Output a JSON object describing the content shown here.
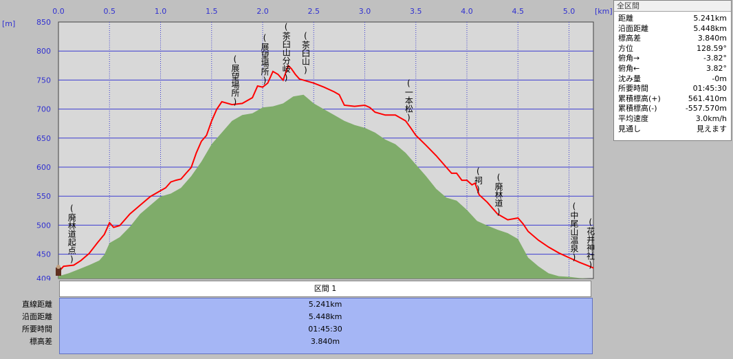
{
  "chart_data": {
    "type": "area",
    "x_unit": "[km]",
    "y_unit": "[m]",
    "xlim": [
      0.0,
      5.241
    ],
    "ylim": [
      409,
      850
    ],
    "x_ticks": [
      "0.0",
      "0.5",
      "1.0",
      "1.5",
      "2.0",
      "2.5",
      "3.0",
      "3.5",
      "4.0",
      "4.5",
      "5.0"
    ],
    "y_ticks": [
      "850",
      "800",
      "750",
      "700",
      "650",
      "600",
      "550",
      "500",
      "450"
    ],
    "y_min_label": "409",
    "colors": {
      "route": "#ff0000",
      "terrain": "#7fac6a",
      "plot_bg": "#d8d8d8",
      "grid": "#3a3ad0",
      "tick_text": "#3030d0"
    },
    "route": {
      "x": [
        0.0,
        0.05,
        0.15,
        0.22,
        0.3,
        0.38,
        0.45,
        0.5,
        0.54,
        0.6,
        0.7,
        0.8,
        0.9,
        1.0,
        1.05,
        1.1,
        1.15,
        1.2,
        1.25,
        1.3,
        1.35,
        1.4,
        1.45,
        1.5,
        1.55,
        1.6,
        1.7,
        1.8,
        1.9,
        1.95,
        2.0,
        2.05,
        2.1,
        2.15,
        2.2,
        2.25,
        2.28,
        2.32,
        2.36,
        2.4,
        2.5,
        2.6,
        2.7,
        2.75,
        2.8,
        2.9,
        3.0,
        3.05,
        3.1,
        3.2,
        3.3,
        3.4,
        3.45,
        3.5,
        3.6,
        3.7,
        3.8,
        3.85,
        3.9,
        3.95,
        4.0,
        4.05,
        4.08,
        4.12,
        4.2,
        4.3,
        4.4,
        4.5,
        4.55,
        4.6,
        4.7,
        4.8,
        4.9,
        5.0,
        5.1,
        5.2,
        5.241
      ],
      "y": [
        420,
        430,
        432,
        440,
        452,
        470,
        485,
        505,
        497,
        500,
        520,
        535,
        550,
        560,
        565,
        575,
        578,
        580,
        590,
        600,
        625,
        645,
        655,
        680,
        700,
        713,
        708,
        710,
        720,
        740,
        738,
        745,
        765,
        760,
        750,
        775,
        770,
        760,
        752,
        750,
        745,
        738,
        730,
        725,
        707,
        705,
        707,
        703,
        695,
        690,
        690,
        680,
        668,
        655,
        638,
        620,
        600,
        590,
        590,
        578,
        578,
        570,
        573,
        553,
        540,
        520,
        510,
        513,
        503,
        490,
        475,
        463,
        453,
        445,
        437,
        430,
        427
      ]
    },
    "terrain": {
      "x": [
        0.0,
        0.1,
        0.2,
        0.3,
        0.4,
        0.45,
        0.5,
        0.6,
        0.7,
        0.8,
        0.9,
        1.0,
        1.1,
        1.2,
        1.3,
        1.4,
        1.5,
        1.6,
        1.7,
        1.8,
        1.9,
        2.0,
        2.1,
        2.2,
        2.3,
        2.4,
        2.5,
        2.6,
        2.7,
        2.8,
        2.9,
        3.0,
        3.1,
        3.2,
        3.3,
        3.4,
        3.5,
        3.6,
        3.7,
        3.8,
        3.9,
        4.0,
        4.1,
        4.2,
        4.3,
        4.4,
        4.5,
        4.6,
        4.7,
        4.8,
        4.9,
        5.0,
        5.1,
        5.2,
        5.241
      ],
      "y": [
        413,
        418,
        425,
        432,
        440,
        450,
        470,
        480,
        498,
        520,
        535,
        550,
        555,
        565,
        585,
        610,
        640,
        660,
        680,
        690,
        693,
        703,
        705,
        710,
        722,
        725,
        710,
        700,
        690,
        680,
        673,
        668,
        660,
        648,
        640,
        625,
        605,
        585,
        563,
        548,
        543,
        527,
        508,
        500,
        493,
        487,
        477,
        445,
        430,
        418,
        413,
        412,
        410,
        409,
        409
      ]
    },
    "annotations": [
      {
        "text": "(廃林道起点)",
        "x": 0.13
      },
      {
        "text": "(展望場所)",
        "x": 1.73
      },
      {
        "text": "(展望場所)",
        "x": 2.02
      },
      {
        "text": "(茶臼山分岐)",
        "x": 2.23
      },
      {
        "text": "(茶臼山)",
        "x": 2.42
      },
      {
        "text": "(一本松)",
        "x": 3.43
      },
      {
        "text": "(祠)",
        "x": 4.11
      },
      {
        "text": "(廃林道)",
        "x": 4.31
      },
      {
        "text": "(中尾山温泉)",
        "x": 5.05
      },
      {
        "text": "(花井神社)",
        "x": 5.21
      }
    ]
  },
  "summary": {
    "title": "全区間",
    "rows": [
      {
        "label": "距離",
        "value": "5.241km"
      },
      {
        "label": "沿面距離",
        "value": "5.448km"
      },
      {
        "label": "標高差",
        "value": "3.840m"
      },
      {
        "label": "方位",
        "value": "128.59°"
      },
      {
        "label": "俯角→",
        "value": "-3.82°"
      },
      {
        "label": "俯角←",
        "value": "3.82°"
      },
      {
        "label": "沈み量",
        "value": "-0m"
      },
      {
        "label": "所要時間",
        "value": "01:45:30"
      },
      {
        "label": "累積標高(+)",
        "value": "561.410m"
      },
      {
        "label": "累積標高(-)",
        "value": "-557.570m"
      },
      {
        "label": "平均速度",
        "value": "3.0km/h"
      },
      {
        "label": "見通し",
        "value": "見えます"
      }
    ]
  },
  "section": {
    "header": "区間 1",
    "rows": [
      {
        "label": "直線距離",
        "value": "5.241km"
      },
      {
        "label": "沿面距離",
        "value": "5.448km"
      },
      {
        "label": "所要時間",
        "value": "01:45:30"
      },
      {
        "label": "標高差",
        "value": "3.840m"
      }
    ]
  }
}
